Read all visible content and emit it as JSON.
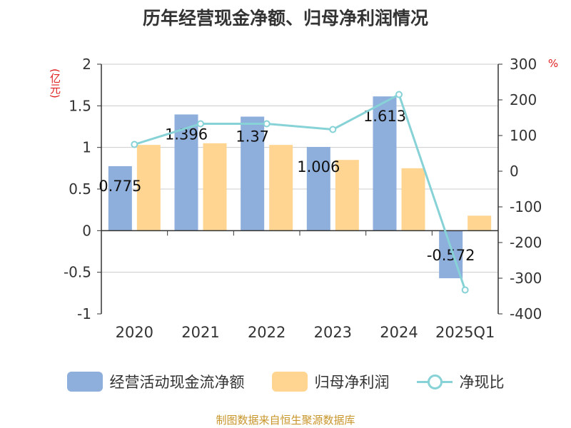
{
  "title": "历年经营现金净额、归母净利润情况",
  "unit_left": "(亿元)",
  "unit_right": "%",
  "source": "制图数据来自恒生聚源数据库",
  "colors": {
    "cash_flow": "#8eaedc",
    "net_profit": "#ffd591",
    "ratio": "#86d2d6",
    "grid": "#cccccc",
    "axis": "#333333"
  },
  "chart_data": {
    "type": "bar",
    "categories": [
      "2020",
      "2021",
      "2022",
      "2023",
      "2024",
      "2025Q1"
    ],
    "series": [
      {
        "name": "经营活动现金流净额",
        "type": "bar",
        "axis": "left",
        "values": [
          0.775,
          1.396,
          1.37,
          1.006,
          1.613,
          -0.572
        ],
        "data_labels": [
          "0.775",
          "1.396",
          "1.37",
          "1.006",
          "1.613",
          "-0.572"
        ]
      },
      {
        "name": "归母净利润",
        "type": "bar",
        "axis": "left",
        "values": [
          1.03,
          1.05,
          1.03,
          0.85,
          0.75,
          0.18
        ]
      },
      {
        "name": "净现比",
        "type": "line",
        "axis": "right",
        "values": [
          75,
          133,
          133,
          117,
          215,
          -333
        ]
      }
    ],
    "y_left": {
      "min": -1,
      "max": 2,
      "ticks": [
        "-1",
        "-0.5",
        "0",
        "0.5",
        "1",
        "1.5",
        "2"
      ],
      "tick_values": [
        -1,
        -0.5,
        0,
        0.5,
        1,
        1.5,
        2
      ]
    },
    "y_right": {
      "min": -400,
      "max": 300,
      "ticks": [
        "-400",
        "-300",
        "-200",
        "-100",
        "0",
        "100",
        "200",
        "300"
      ],
      "tick_values": [
        -400,
        -300,
        -200,
        -100,
        0,
        100,
        200,
        300
      ]
    },
    "grid": true,
    "legend_position": "bottom"
  }
}
